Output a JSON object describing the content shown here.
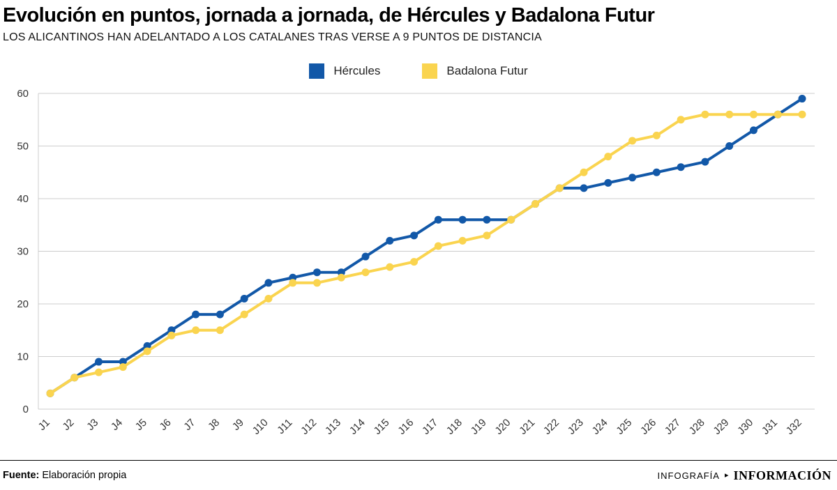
{
  "header": {
    "title": "Evolución en puntos, jornada a jornada, de Hércules y Badalona Futur",
    "subtitle": "LOS ALICANTINOS HAN ADELANTADO A LOS CATALANES TRAS VERSE A 9 PUNTOS DE DISTANCIA"
  },
  "footer": {
    "source_label": "Fuente:",
    "source_value": "Elaboración propia",
    "credit_left": "INFOGRAFÍA",
    "credit_arrow": "▸",
    "credit_right": "INFORMACIÓN"
  },
  "colors": {
    "grid": "#cccccc",
    "axis_text": "#333333",
    "hercules_blue": "#1258a8",
    "badalona_yellow": "#fad44f"
  },
  "chart_data": {
    "type": "line",
    "title": "Evolución en puntos, jornada a jornada, de Hércules y Badalona Futur",
    "categories": [
      "J1",
      "J2",
      "J3",
      "J4",
      "J5",
      "J6",
      "J7",
      "J8",
      "J9",
      "J10",
      "J11",
      "J12",
      "J13",
      "J14",
      "J15",
      "J16",
      "J17",
      "J18",
      "J19",
      "J20",
      "J21",
      "J22",
      "J23",
      "J24",
      "J25",
      "J26",
      "J27",
      "J28",
      "J29",
      "J30",
      "J31",
      "J32"
    ],
    "series": [
      {
        "name": "Hércules",
        "color": "#1258a8",
        "values": [
          3,
          6,
          9,
          9,
          12,
          15,
          18,
          18,
          21,
          24,
          25,
          26,
          26,
          29,
          32,
          33,
          36,
          36,
          36,
          36,
          39,
          42,
          42,
          43,
          44,
          45,
          46,
          47,
          50,
          53,
          56,
          59
        ]
      },
      {
        "name": "Badalona Futur",
        "color": "#fad44f",
        "values": [
          3,
          6,
          7,
          8,
          11,
          14,
          15,
          15,
          18,
          21,
          24,
          24,
          25,
          26,
          27,
          28,
          31,
          32,
          33,
          36,
          39,
          42,
          45,
          48,
          51,
          52,
          55,
          56,
          56,
          56,
          56,
          56
        ]
      }
    ],
    "xlabel": "",
    "ylabel": "",
    "ylim": [
      0,
      60
    ],
    "y_ticks": [
      0,
      10,
      20,
      30,
      40,
      50,
      60
    ],
    "grid": "horizontal",
    "legend_position": "top"
  }
}
